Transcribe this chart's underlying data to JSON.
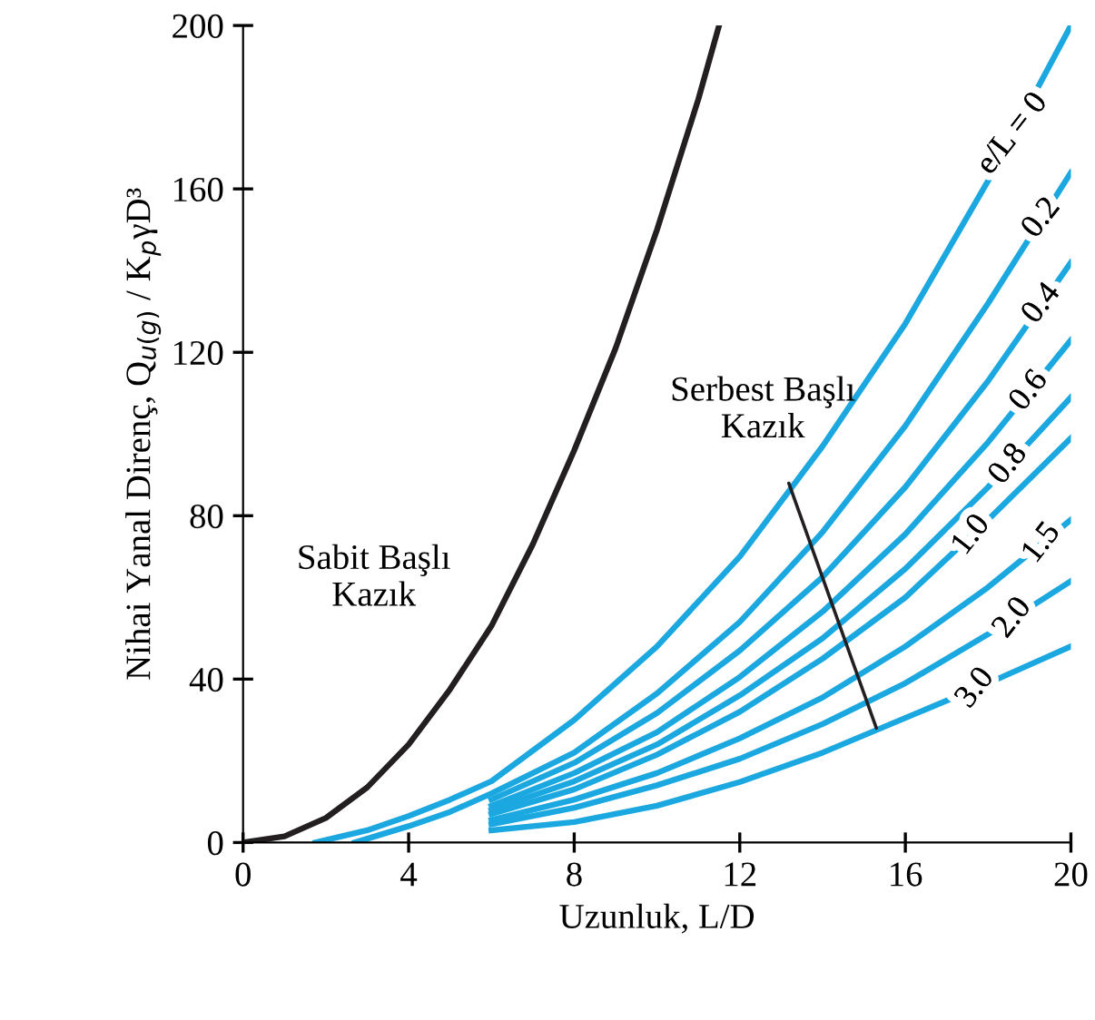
{
  "chart_data": {
    "type": "line",
    "xlabel": "Uzunluk, L/D",
    "ylabel": "Nihai Yanal Direnç, Q$_{u(g)}$ / K$_{p}$γD³",
    "xlim": [
      0,
      20
    ],
    "ylim": [
      0,
      200
    ],
    "xticks": [
      0,
      4,
      8,
      12,
      16,
      20
    ],
    "yticks": [
      0,
      40,
      80,
      120,
      160,
      200
    ],
    "grid": false,
    "legend": false,
    "marker": "none",
    "line_style": "solid",
    "series": [
      {
        "color": "#231f20",
        "x": [
          0,
          1,
          2,
          3,
          4,
          5,
          6,
          7,
          8,
          9,
          10,
          11,
          11.5
        ],
        "values": [
          0,
          1.5,
          6,
          13.5,
          24,
          37.5,
          53,
          73,
          96,
          121,
          150,
          182,
          200
        ]
      },
      {
        "name": "e/L = 0",
        "color": "#1ba8e0",
        "x": [
          1.75,
          3,
          4,
          5,
          6,
          8,
          10,
          12,
          14,
          16,
          18,
          20
        ],
        "values": [
          0,
          3,
          6.5,
          10.5,
          15,
          30,
          48,
          70,
          97,
          127,
          162,
          200
        ]
      },
      {
        "name": "0.2",
        "color": "#1ba8e0",
        "x": [
          2.7,
          4,
          5,
          6,
          8,
          10,
          12,
          14,
          16,
          18,
          20
        ],
        "values": [
          0,
          4,
          7.5,
          12,
          22,
          36.5,
          54,
          76,
          102,
          132,
          164
        ]
      },
      {
        "name": "0.4",
        "color": "#1ba8e0",
        "x": [
          6,
          8,
          10,
          12,
          14,
          16,
          18,
          20
        ],
        "values": [
          10.5,
          19.5,
          31.7,
          47,
          65,
          87,
          113,
          142
        ]
      },
      {
        "name": "0.6",
        "color": "#1ba8e0",
        "x": [
          6,
          8,
          10,
          12,
          14,
          16,
          18,
          20
        ],
        "values": [
          9,
          17,
          27,
          40.5,
          56.5,
          75.5,
          98,
          123
        ]
      },
      {
        "name": "0.8",
        "color": "#1ba8e0",
        "x": [
          6,
          8,
          10,
          12,
          14,
          16,
          18,
          20
        ],
        "values": [
          8,
          15,
          24,
          36,
          50,
          67,
          87,
          109
        ]
      },
      {
        "name": "1.0",
        "color": "#1ba8e0",
        "x": [
          6,
          8,
          10,
          12,
          14,
          16,
          18,
          20
        ],
        "values": [
          7,
          13,
          21.5,
          32,
          45,
          60,
          79,
          99
        ]
      },
      {
        "name": "1.5",
        "color": "#1ba8e0",
        "x": [
          6,
          8,
          10,
          12,
          14,
          16,
          18,
          20
        ],
        "values": [
          5.5,
          10.5,
          17,
          25.5,
          35.5,
          48,
          62.5,
          79
        ]
      },
      {
        "name": "2.0",
        "color": "#1ba8e0",
        "x": [
          6,
          8,
          10,
          12,
          14,
          16,
          18,
          20
        ],
        "values": [
          4.5,
          8.5,
          14,
          20.5,
          29,
          39,
          51,
          64
        ]
      },
      {
        "name": "3.0",
        "color": "#1ba8e0",
        "x": [
          6,
          8,
          10,
          12,
          14,
          16,
          18,
          20
        ],
        "values": [
          3,
          5,
          9,
          14.8,
          22,
          30.5,
          39,
          48
        ]
      }
    ],
    "annotations": [
      {
        "text": "Sabit Başlı\nKazık",
        "x": 5.9,
        "y": 51
      },
      {
        "text": "Serbest Başlı\nKazık",
        "x": 15.3,
        "y": 28
      }
    ]
  }
}
